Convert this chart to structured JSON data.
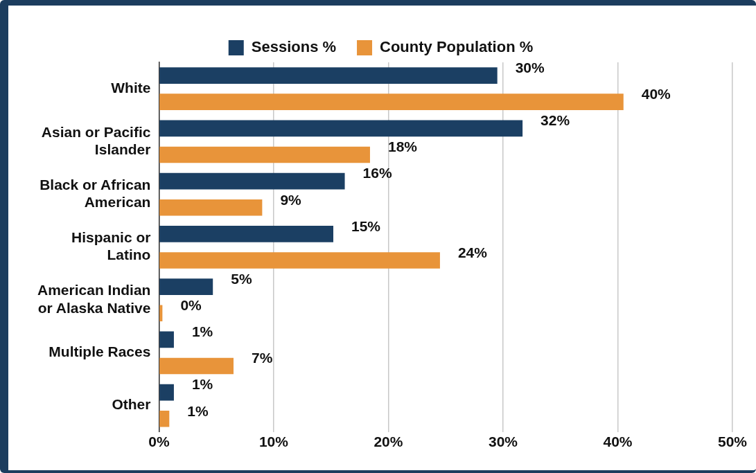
{
  "chart_data": {
    "type": "bar",
    "orientation": "horizontal",
    "categories": [
      "White",
      "Asian or Pacific Islander",
      "Black or African American",
      "Hispanic or Latino",
      "American Indian or Alaska Native",
      "Multiple Races",
      "Other"
    ],
    "series": [
      {
        "name": "Sessions %",
        "color": "#1b3f63",
        "values": [
          29.5,
          31.7,
          16.2,
          15.2,
          4.7,
          1.3,
          1.3
        ],
        "value_labels": [
          "30%",
          "32%",
          "16%",
          "15%",
          "5%",
          "1%",
          "1%"
        ]
      },
      {
        "name": "County Population %",
        "color": "#e8943a",
        "values": [
          40.5,
          18.4,
          9.0,
          24.5,
          0.3,
          6.5,
          0.9
        ],
        "value_labels": [
          "40%",
          "18%",
          "9%",
          "24%",
          "0%",
          "7%",
          "1%"
        ]
      }
    ],
    "xlim": [
      0,
      50
    ],
    "xticks": [
      {
        "value": 0,
        "label": "0%"
      },
      {
        "value": 10,
        "label": "10%"
      },
      {
        "value": 20,
        "label": "20%"
      },
      {
        "value": 30,
        "label": "30%"
      },
      {
        "value": 40,
        "label": "40%"
      },
      {
        "value": 50,
        "label": "50%"
      }
    ],
    "grid": "x",
    "legend": "top"
  }
}
